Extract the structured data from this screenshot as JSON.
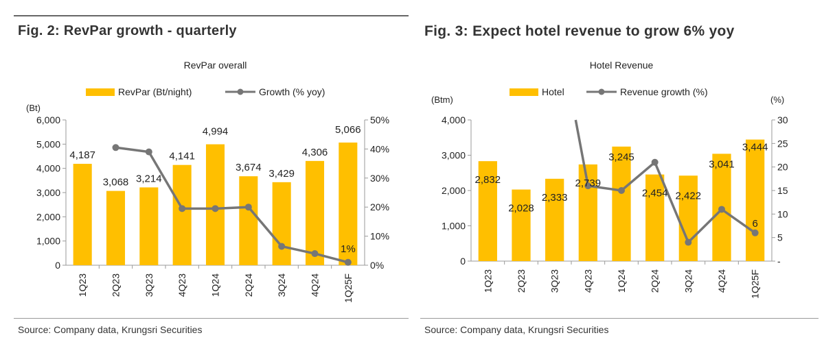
{
  "colors": {
    "bar": "#FFBF00",
    "line": "#767676",
    "axis": "#999999"
  },
  "left": {
    "fig_title": "Fig. 2: RevPar growth - quarterly",
    "source": "Source: Company data, Krungsri Securities"
  },
  "right": {
    "fig_title": "Fig. 3: Expect hotel revenue to grow 6% yoy",
    "source": "Source: Company data, Krungsri Securities"
  },
  "chart_data": [
    {
      "type": "bar+line",
      "title": "RevPar overall",
      "categories": [
        "1Q23",
        "2Q23",
        "3Q23",
        "4Q23",
        "1Q24",
        "2Q24",
        "3Q24",
        "4Q24",
        "1Q25F"
      ],
      "series": [
        {
          "name": "RevPar (Bt/night)",
          "type": "bar",
          "axis": "left",
          "values": [
            4187,
            3068,
            3214,
            4141,
            4994,
            3674,
            3429,
            4306,
            5066
          ],
          "labels": [
            "4,187",
            "3,068",
            "3,214",
            "4,141",
            "4,994",
            "3,674",
            "3,429",
            "4,306",
            "5,066"
          ]
        },
        {
          "name": "Growth (% yoy)",
          "type": "line",
          "axis": "right",
          "values": [
            null,
            40.5,
            39.0,
            19.5,
            19.5,
            20.0,
            6.5,
            4.0,
            1.0
          ],
          "labels": [
            "",
            "",
            "",
            "",
            "",
            "",
            "",
            "",
            "1%"
          ]
        }
      ],
      "left_unit": "(Bt)",
      "right_unit": "",
      "ylim_left": [
        0,
        6000
      ],
      "ylim_right": [
        0,
        50
      ],
      "yticks_left": [
        "0",
        "1,000",
        "2,000",
        "3,000",
        "4,000",
        "5,000",
        "6,000"
      ],
      "yticks_right": [
        "0%",
        "10%",
        "20%",
        "30%",
        "40%",
        "50%"
      ],
      "legend": "top",
      "grid": false
    },
    {
      "type": "bar+line",
      "title": "Hotel Revenue",
      "categories": [
        "1Q23",
        "2Q23",
        "3Q23",
        "4Q23",
        "1Q24",
        "2Q24",
        "3Q24",
        "4Q24",
        "1Q25F"
      ],
      "series": [
        {
          "name": "Hotel",
          "type": "bar",
          "axis": "left",
          "values": [
            2832,
            2028,
            2333,
            2739,
            3245,
            2454,
            2422,
            3041,
            3444
          ],
          "labels": [
            "2,832",
            "2,028",
            "2,333",
            "2,739",
            "3,245",
            "2,454",
            "2,422",
            "3,041",
            "3,444"
          ]
        },
        {
          "name": "Revenue growth (%)",
          "type": "line",
          "axis": "right",
          "values": [
            null,
            null,
            null,
            16.0,
            15.0,
            21.0,
            4.0,
            11.0,
            6.0
          ],
          "labels": [
            "",
            "",
            "",
            "",
            "",
            "",
            "",
            "",
            "6"
          ]
        }
      ],
      "left_unit": "(Btm)",
      "right_unit": "(%)",
      "ylim_left": [
        0,
        4000
      ],
      "ylim_right": [
        0,
        30
      ],
      "yticks_left": [
        "0",
        "1,000",
        "2,000",
        "3,000",
        "4,000"
      ],
      "yticks_right": [
        "-",
        "5",
        "10",
        "15",
        "20",
        "25",
        "30"
      ],
      "legend": "top",
      "grid": false
    }
  ]
}
